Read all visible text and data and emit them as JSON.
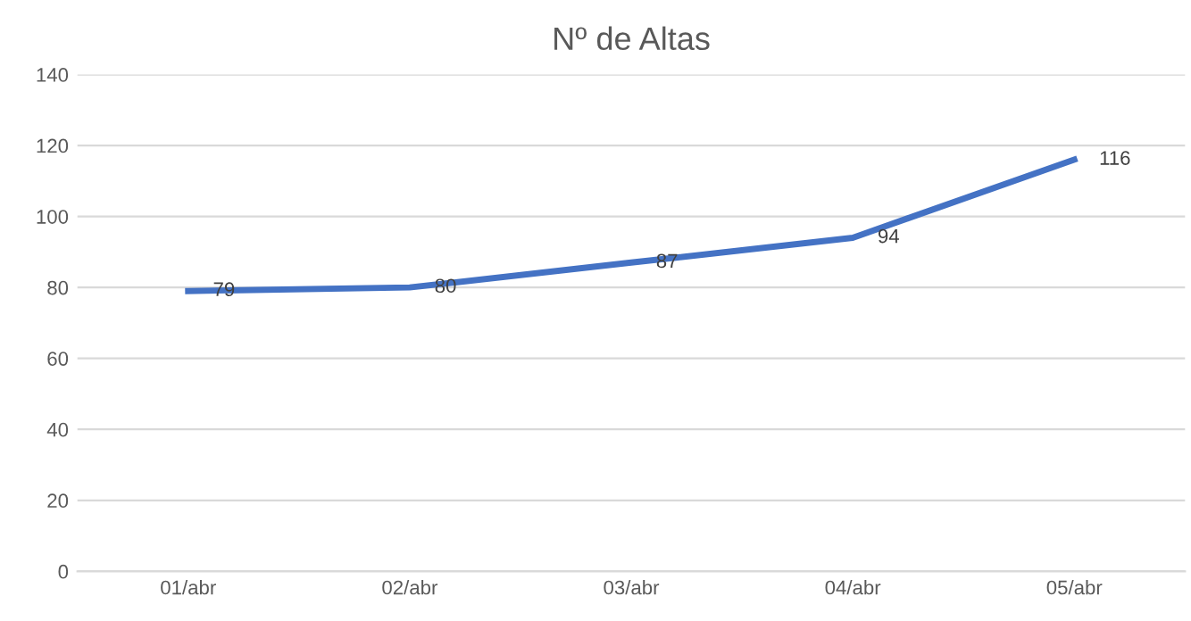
{
  "chart_data": {
    "type": "line",
    "title": "Nº de Altas",
    "categories": [
      "01/abr",
      "02/abr",
      "03/abr",
      "04/abr",
      "05/abr"
    ],
    "series": [
      {
        "color": "#4472c4",
        "values": [
          79,
          80,
          87,
          94,
          116
        ]
      }
    ],
    "ylim": [
      0,
      140
    ],
    "yticks": [
      0,
      20,
      40,
      60,
      80,
      100,
      120,
      140
    ],
    "grid": "y",
    "data_labels": true,
    "marker": "none",
    "line_style": "solid",
    "legend": false
  }
}
